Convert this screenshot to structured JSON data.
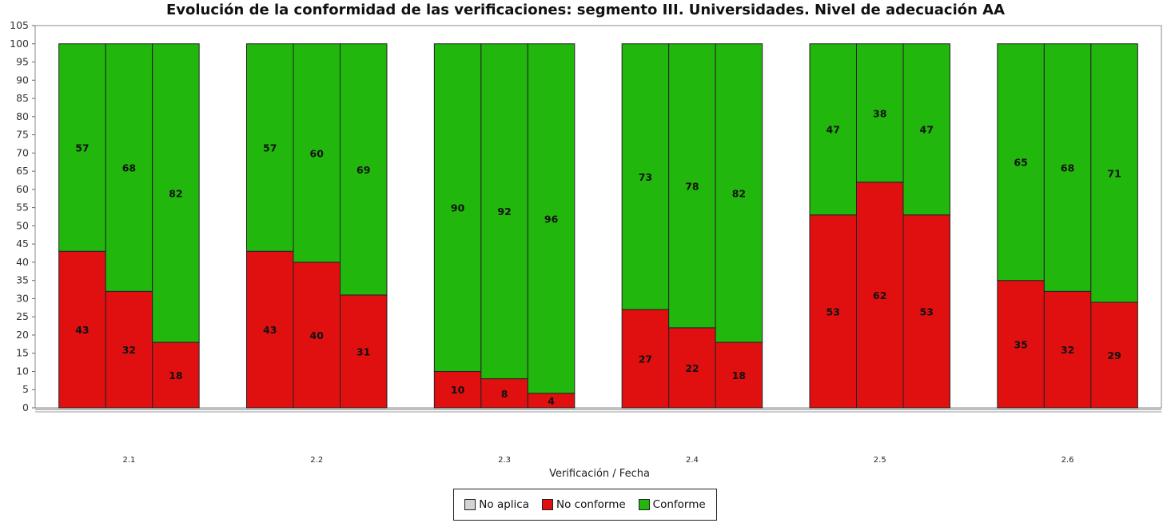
{
  "chart_data": {
    "type": "bar",
    "stacked": true,
    "title": "Evolución de la conformidad de las verificaciones: segmento III. Universidades. Nivel de adecuación AA",
    "xlabel": "Verificación / Fecha",
    "ylabel": "",
    "ylim": [
      0,
      105
    ],
    "ytick_step": 5,
    "categories": [
      "2.1",
      "2.2",
      "2.3",
      "2.4",
      "2.5",
      "2.6"
    ],
    "bars_per_category": 3,
    "series": [
      {
        "name": "No aplica",
        "color": "#d4d4d4",
        "values": [
          [
            0,
            0,
            0
          ],
          [
            0,
            0,
            0
          ],
          [
            0,
            0,
            0
          ],
          [
            0,
            0,
            0
          ],
          [
            0,
            0,
            0
          ],
          [
            0,
            0,
            0
          ]
        ]
      },
      {
        "name": "No conforme",
        "color": "#e01010",
        "values": [
          [
            43,
            32,
            18
          ],
          [
            43,
            40,
            31
          ],
          [
            10,
            8,
            4
          ],
          [
            27,
            22,
            18
          ],
          [
            53,
            62,
            53
          ],
          [
            35,
            32,
            29
          ]
        ]
      },
      {
        "name": "Conforme",
        "color": "#22b70c",
        "values": [
          [
            57,
            68,
            82
          ],
          [
            57,
            60,
            69
          ],
          [
            90,
            92,
            96
          ],
          [
            73,
            78,
            82
          ],
          [
            47,
            38,
            47
          ],
          [
            65,
            68,
            71
          ]
        ]
      }
    ],
    "legend_position": "bottom",
    "grid": false
  }
}
